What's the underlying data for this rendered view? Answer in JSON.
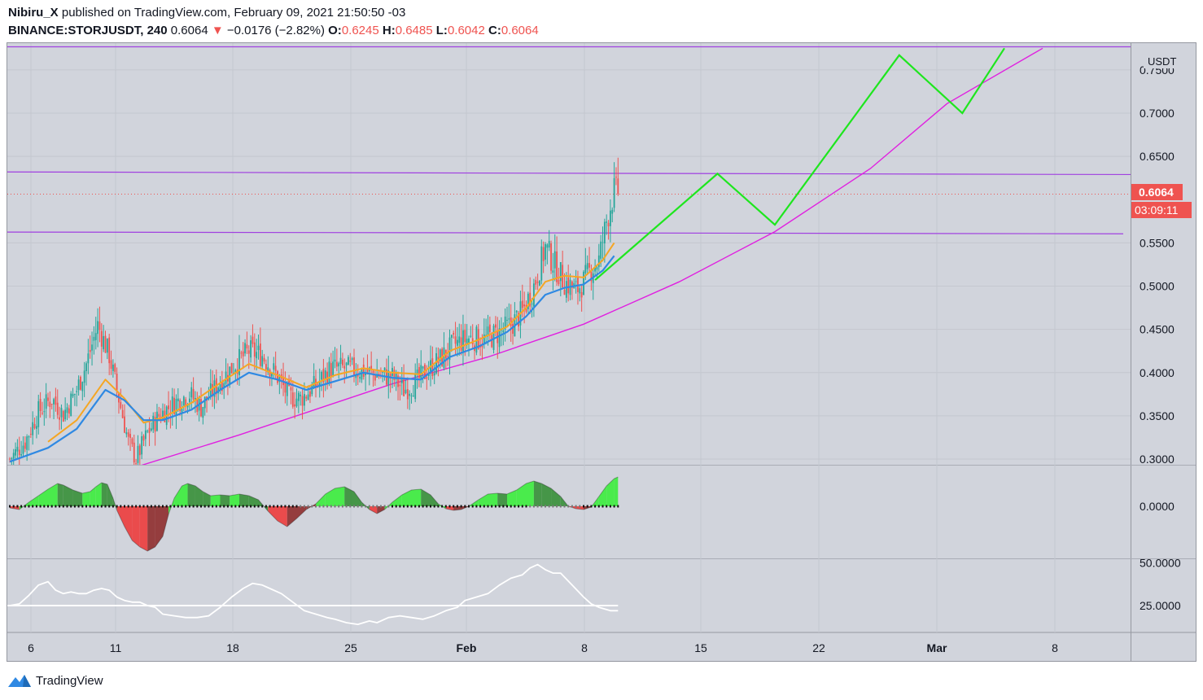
{
  "header": {
    "publisher": "Nibiru_X",
    "published_text": "published on TradingView.com, February 09, 2021 21:50:50 -03",
    "symbol": "BINANCE:STORJUSDT, 240",
    "last": "0.6064",
    "change_arrow": "▼",
    "change": "−0.0176 (−2.82%)",
    "open_label": "O:",
    "open": "0.6245",
    "high_label": "H:",
    "high": "0.6485",
    "low_label": "L:",
    "low": "0.6042",
    "close_label": "C:",
    "close": "0.6064"
  },
  "footer": {
    "brand": "TradingView",
    "logo_icon": "tradingview-logo-icon"
  },
  "colors": {
    "pane_bg": "#d1d4dc",
    "up": "#26a69a",
    "down": "#ef5350",
    "ema_fast": "#f5a623",
    "ema_slow": "#2f89e3",
    "purple_line": "#a040e0",
    "magenta_curve": "#e020e0",
    "projection": "#1ee61e",
    "osc_up": "#00e000",
    "osc_down": "#e00000",
    "rsi": "#ffffff"
  },
  "chart_data": [
    {
      "type": "candlestick",
      "pane": "price",
      "unit_label": "USDT",
      "y_ticks": [
        "0.7500",
        "0.7000",
        "0.6500",
        "0.5500",
        "0.5000",
        "0.4500",
        "0.4000",
        "0.3500",
        "0.3000"
      ],
      "ylim": [
        0.285,
        0.775
      ],
      "x_ticks": [
        "6",
        "11",
        "18",
        "25",
        "Feb",
        "8",
        "15",
        "22",
        "Mar",
        "8"
      ],
      "last_price_badge": "0.6064",
      "countdown_badge": "03:09:11",
      "close_path": [
        [
          0,
          0.3
        ],
        [
          8,
          0.32
        ],
        [
          15,
          0.355
        ],
        [
          22,
          0.37
        ],
        [
          28,
          0.352
        ],
        [
          35,
          0.38
        ],
        [
          40,
          0.41
        ],
        [
          46,
          0.455
        ],
        [
          52,
          0.42
        ],
        [
          57,
          0.37
        ],
        [
          62,
          0.32
        ],
        [
          66,
          0.3
        ],
        [
          72,
          0.33
        ],
        [
          78,
          0.35
        ],
        [
          86,
          0.365
        ],
        [
          94,
          0.375
        ],
        [
          100,
          0.36
        ],
        [
          110,
          0.39
        ],
        [
          118,
          0.41
        ],
        [
          125,
          0.425
        ],
        [
          132,
          0.42
        ],
        [
          140,
          0.395
        ],
        [
          146,
          0.372
        ],
        [
          152,
          0.37
        ],
        [
          160,
          0.385
        ],
        [
          168,
          0.405
        ],
        [
          176,
          0.405
        ],
        [
          184,
          0.402
        ],
        [
          192,
          0.398
        ],
        [
          200,
          0.395
        ],
        [
          206,
          0.38
        ],
        [
          212,
          0.388
        ],
        [
          218,
          0.402
        ],
        [
          225,
          0.415
        ],
        [
          232,
          0.432
        ],
        [
          240,
          0.44
        ],
        [
          248,
          0.438
        ],
        [
          255,
          0.445
        ],
        [
          262,
          0.455
        ],
        [
          268,
          0.47
        ],
        [
          274,
          0.5
        ],
        [
          280,
          0.545
        ],
        [
          286,
          0.52
        ],
        [
          290,
          0.505
        ],
        [
          296,
          0.495
        ],
        [
          300,
          0.505
        ],
        [
          304,
          0.52
        ],
        [
          308,
          0.53
        ],
        [
          312,
          0.575
        ],
        [
          316,
          0.61
        ],
        [
          318,
          0.606
        ]
      ],
      "ema_fast_path": [
        [
          20,
          0.32
        ],
        [
          35,
          0.345
        ],
        [
          50,
          0.392
        ],
        [
          60,
          0.37
        ],
        [
          70,
          0.342
        ],
        [
          80,
          0.348
        ],
        [
          95,
          0.365
        ],
        [
          110,
          0.388
        ],
        [
          125,
          0.41
        ],
        [
          140,
          0.397
        ],
        [
          155,
          0.383
        ],
        [
          170,
          0.397
        ],
        [
          185,
          0.405
        ],
        [
          200,
          0.4
        ],
        [
          215,
          0.398
        ],
        [
          230,
          0.425
        ],
        [
          245,
          0.438
        ],
        [
          260,
          0.453
        ],
        [
          270,
          0.475
        ],
        [
          280,
          0.505
        ],
        [
          290,
          0.512
        ],
        [
          300,
          0.51
        ],
        [
          310,
          0.53
        ],
        [
          316,
          0.55
        ]
      ],
      "ema_slow_path": [
        [
          0,
          0.297
        ],
        [
          20,
          0.313
        ],
        [
          35,
          0.335
        ],
        [
          50,
          0.38
        ],
        [
          60,
          0.368
        ],
        [
          70,
          0.345
        ],
        [
          80,
          0.345
        ],
        [
          95,
          0.357
        ],
        [
          110,
          0.38
        ],
        [
          125,
          0.4
        ],
        [
          140,
          0.392
        ],
        [
          155,
          0.38
        ],
        [
          170,
          0.39
        ],
        [
          185,
          0.4
        ],
        [
          200,
          0.394
        ],
        [
          215,
          0.392
        ],
        [
          230,
          0.418
        ],
        [
          245,
          0.43
        ],
        [
          260,
          0.447
        ],
        [
          270,
          0.465
        ],
        [
          280,
          0.49
        ],
        [
          290,
          0.498
        ],
        [
          300,
          0.502
        ],
        [
          310,
          0.518
        ],
        [
          316,
          0.535
        ]
      ],
      "horizontal_lines": [
        {
          "y_start": 0.774,
          "y_end": 0.774
        },
        {
          "y_start": 0.632,
          "y_end": 0.629
        },
        {
          "y_start": 0.5625,
          "y_end": 0.5605
        }
      ],
      "growth_curve": [
        [
          64,
          0.2895
        ],
        [
          120,
          0.328
        ],
        [
          200,
          0.387
        ],
        [
          250,
          0.418
        ],
        [
          300,
          0.456
        ],
        [
          350,
          0.505
        ],
        [
          400,
          0.563
        ],
        [
          450,
          0.636
        ],
        [
          490,
          0.711
        ],
        [
          540,
          0.775
        ]
      ],
      "projection_path": [
        [
          306,
          0.507
        ],
        [
          370,
          0.63
        ],
        [
          400,
          0.571
        ],
        [
          465,
          0.767
        ],
        [
          498,
          0.7
        ],
        [
          520,
          0.775
        ]
      ]
    },
    {
      "type": "area",
      "pane": "oscillator",
      "y_ticks": [
        "0.0000"
      ],
      "ylim": [
        -0.06,
        0.05
      ],
      "values": [
        [
          0,
          -0.002
        ],
        [
          5,
          -0.004
        ],
        [
          10,
          0.005
        ],
        [
          15,
          0.013
        ],
        [
          20,
          0.021
        ],
        [
          25,
          0.028
        ],
        [
          28,
          0.026
        ],
        [
          33,
          0.02
        ],
        [
          38,
          0.016
        ],
        [
          42,
          0.018
        ],
        [
          45,
          0.024
        ],
        [
          48,
          0.029
        ],
        [
          51,
          0.027
        ],
        [
          54,
          0.01
        ],
        [
          56,
          -0.005
        ],
        [
          60,
          -0.025
        ],
        [
          64,
          -0.042
        ],
        [
          68,
          -0.05
        ],
        [
          72,
          -0.055
        ],
        [
          76,
          -0.05
        ],
        [
          80,
          -0.037
        ],
        [
          83,
          -0.01
        ],
        [
          86,
          0.01
        ],
        [
          90,
          0.025
        ],
        [
          93,
          0.028
        ],
        [
          97,
          0.025
        ],
        [
          101,
          0.018
        ],
        [
          105,
          0.013
        ],
        [
          110,
          0.014
        ],
        [
          115,
          0.013
        ],
        [
          120,
          0.015
        ],
        [
          125,
          0.013
        ],
        [
          130,
          0.008
        ],
        [
          135,
          -0.006
        ],
        [
          140,
          -0.018
        ],
        [
          145,
          -0.025
        ],
        [
          150,
          -0.015
        ],
        [
          155,
          -0.004
        ],
        [
          160,
          0.003
        ],
        [
          165,
          0.015
        ],
        [
          170,
          0.022
        ],
        [
          175,
          0.024
        ],
        [
          180,
          0.018
        ],
        [
          184,
          0.005
        ],
        [
          188,
          -0.004
        ],
        [
          192,
          -0.009
        ],
        [
          196,
          -0.004
        ],
        [
          200,
          0.005
        ],
        [
          205,
          0.014
        ],
        [
          210,
          0.02
        ],
        [
          215,
          0.021
        ],
        [
          220,
          0.014
        ],
        [
          224,
          0.003
        ],
        [
          228,
          -0.003
        ],
        [
          232,
          -0.005
        ],
        [
          236,
          -0.004
        ],
        [
          240,
          0.0
        ],
        [
          245,
          0.008
        ],
        [
          250,
          0.015
        ],
        [
          255,
          0.016
        ],
        [
          260,
          0.015
        ],
        [
          265,
          0.02
        ],
        [
          270,
          0.028
        ],
        [
          274,
          0.031
        ],
        [
          278,
          0.028
        ],
        [
          283,
          0.022
        ],
        [
          288,
          0.012
        ],
        [
          292,
          0.0
        ],
        [
          296,
          -0.003
        ],
        [
          300,
          -0.004
        ],
        [
          304,
          -0.001
        ],
        [
          308,
          0.012
        ],
        [
          312,
          0.025
        ],
        [
          316,
          0.034
        ],
        [
          318,
          0.036
        ]
      ]
    },
    {
      "type": "line",
      "pane": "rsi",
      "y_ticks": [
        "50.0000",
        "25.0000"
      ],
      "ylim": [
        10,
        56
      ],
      "reference_level": 25,
      "values": [
        [
          0,
          25
        ],
        [
          5,
          26
        ],
        [
          10,
          31
        ],
        [
          15,
          37
        ],
        [
          20,
          39
        ],
        [
          24,
          34
        ],
        [
          28,
          32
        ],
        [
          32,
          33
        ],
        [
          36,
          32
        ],
        [
          40,
          32
        ],
        [
          44,
          34
        ],
        [
          48,
          35
        ],
        [
          52,
          34
        ],
        [
          56,
          30
        ],
        [
          60,
          28
        ],
        [
          64,
          27
        ],
        [
          68,
          27
        ],
        [
          72,
          25
        ],
        [
          76,
          24
        ],
        [
          80,
          20
        ],
        [
          86,
          19
        ],
        [
          92,
          18
        ],
        [
          98,
          18
        ],
        [
          104,
          19
        ],
        [
          110,
          24
        ],
        [
          116,
          30
        ],
        [
          122,
          35
        ],
        [
          127,
          38
        ],
        [
          132,
          37
        ],
        [
          136,
          35
        ],
        [
          142,
          32
        ],
        [
          148,
          27
        ],
        [
          154,
          22
        ],
        [
          160,
          20
        ],
        [
          166,
          18
        ],
        [
          170,
          17
        ],
        [
          176,
          15
        ],
        [
          182,
          14
        ],
        [
          188,
          16
        ],
        [
          192,
          15
        ],
        [
          198,
          18
        ],
        [
          204,
          19
        ],
        [
          210,
          18
        ],
        [
          216,
          17
        ],
        [
          222,
          19
        ],
        [
          228,
          22
        ],
        [
          234,
          24
        ],
        [
          238,
          28
        ],
        [
          244,
          30
        ],
        [
          250,
          32
        ],
        [
          256,
          37
        ],
        [
          262,
          41
        ],
        [
          268,
          43
        ],
        [
          272,
          47
        ],
        [
          276,
          49
        ],
        [
          280,
          46
        ],
        [
          284,
          44
        ],
        [
          288,
          44
        ],
        [
          294,
          37
        ],
        [
          300,
          30
        ],
        [
          304,
          26
        ],
        [
          308,
          24
        ],
        [
          314,
          22
        ],
        [
          318,
          22
        ]
      ]
    }
  ]
}
